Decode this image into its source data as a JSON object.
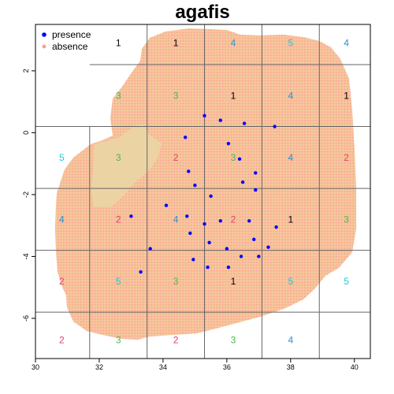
{
  "chart_data": {
    "type": "scatter",
    "title": "agafis",
    "xlabel": "",
    "ylabel": "",
    "xlim": [
      30,
      40.5
    ],
    "ylim": [
      -7.3,
      3.5
    ],
    "x_ticks": [
      "30",
      "32",
      "34",
      "36",
      "38",
      "40"
    ],
    "y_ticks": [
      "2",
      "0",
      "-2",
      "-4",
      "-6"
    ],
    "grid": "blocks",
    "legend_position": "top-left",
    "legend": [
      {
        "label": "presence",
        "color": "#0000ff"
      },
      {
        "label": "absence",
        "color": "#ff9999"
      }
    ],
    "colors": {
      "land": "#f5c89a",
      "lake": "#ecd3a4",
      "presence": "#0000ff",
      "absence": "#ff9999",
      "fold_1": "#000000",
      "fold_2": "#e0406a",
      "fold_3": "#44bb44",
      "fold_4": "#2a90d0",
      "fold_5": "#22c8e0"
    },
    "block_x_breaks": [
      29.95,
      31.7,
      33.5,
      35.3,
      37.1,
      38.9,
      40.6
    ],
    "block_y_breaks": [
      3.6,
      2.2,
      0.2,
      -1.8,
      -3.8,
      -5.8,
      -7.6
    ],
    "fold_labels": [
      [
        null,
        "1",
        "1",
        "4",
        "5",
        "4"
      ],
      [
        null,
        "3",
        "3",
        "1",
        "4",
        "1"
      ],
      [
        "5",
        "3",
        "2",
        "3",
        "4",
        "2"
      ],
      [
        "4",
        "2",
        "4",
        "2",
        "1",
        "3"
      ],
      [
        "2",
        "5",
        "3",
        "1",
        "5",
        "5"
      ],
      [
        "2",
        "3",
        "2",
        "3",
        "4",
        null
      ]
    ],
    "presence_points": [
      [
        35.3,
        0.55
      ],
      [
        35.8,
        0.4
      ],
      [
        36.55,
        0.3
      ],
      [
        37.5,
        0.2
      ],
      [
        34.7,
        -0.15
      ],
      [
        36.05,
        -0.35
      ],
      [
        36.4,
        -0.85
      ],
      [
        34.8,
        -1.25
      ],
      [
        36.9,
        -1.3
      ],
      [
        36.5,
        -1.6
      ],
      [
        35.0,
        -1.7
      ],
      [
        36.9,
        -1.85
      ],
      [
        35.5,
        -2.05
      ],
      [
        34.1,
        -2.35
      ],
      [
        33.0,
        -2.7
      ],
      [
        34.75,
        -2.7
      ],
      [
        35.8,
        -2.85
      ],
      [
        36.7,
        -2.85
      ],
      [
        35.3,
        -2.95
      ],
      [
        37.55,
        -3.05
      ],
      [
        34.85,
        -3.25
      ],
      [
        36.85,
        -3.45
      ],
      [
        35.45,
        -3.55
      ],
      [
        33.6,
        -3.75
      ],
      [
        36.0,
        -3.75
      ],
      [
        37.3,
        -3.7
      ],
      [
        36.45,
        -4.0
      ],
      [
        37.0,
        -4.0
      ],
      [
        34.95,
        -4.1
      ],
      [
        35.4,
        -4.35
      ],
      [
        36.05,
        -4.35
      ],
      [
        33.3,
        -4.5
      ]
    ]
  }
}
